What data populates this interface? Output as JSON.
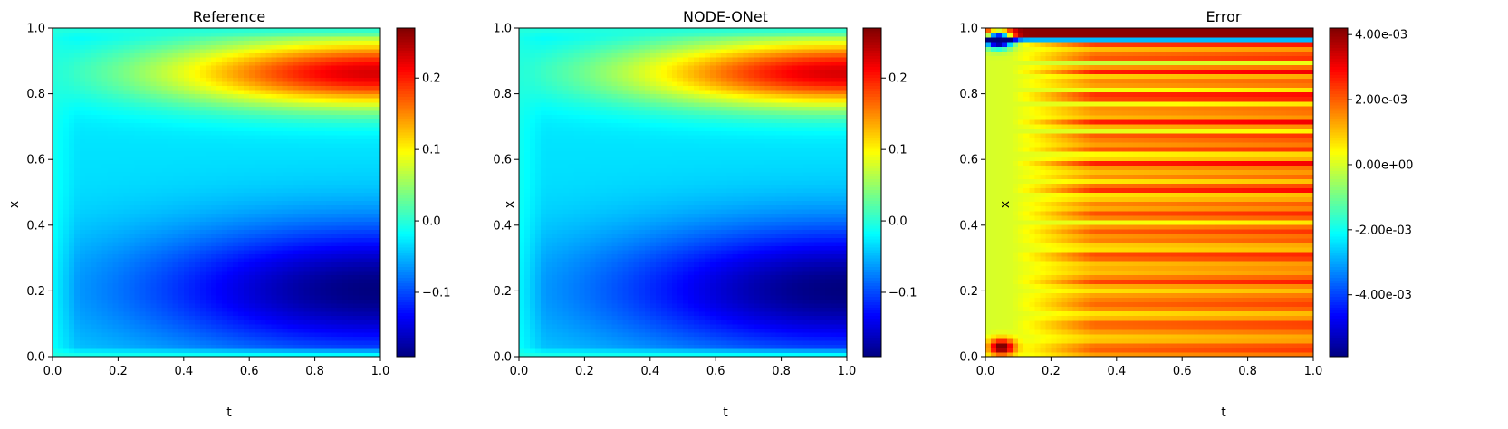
{
  "colormap": [
    "#00007f",
    "#0000ff",
    "#007fff",
    "#00ffff",
    "#7fff7f",
    "#ffff00",
    "#ff7f00",
    "#ff0000",
    "#7f0000"
  ],
  "chart_data": [
    {
      "type": "heatmap",
      "title": "Reference",
      "xlabel": "t",
      "ylabel": "x",
      "xlim": [
        0,
        1
      ],
      "ylim": [
        0,
        1
      ],
      "xticks": [
        0.0,
        0.2,
        0.4,
        0.6,
        0.8,
        1.0
      ],
      "xtick_labels": [
        "0.0",
        "0.2",
        "0.4",
        "0.6",
        "0.8",
        "1.0"
      ],
      "yticks": [
        0.0,
        0.2,
        0.4,
        0.6,
        0.8,
        1.0
      ],
      "ytick_labels": [
        "0.0",
        "0.2",
        "0.4",
        "0.6",
        "0.8",
        "1.0"
      ],
      "field": "solution",
      "colorbar": {
        "vmin": -0.19,
        "vmax": 0.27,
        "ticks": [
          -0.1,
          0.0,
          0.1,
          0.2
        ],
        "tick_labels": [
          "−0.1",
          "0.0",
          "0.1",
          "0.2"
        ]
      }
    },
    {
      "type": "heatmap",
      "title": "NODE-ONet",
      "xlabel": "t",
      "ylabel": "x",
      "xlim": [
        0,
        1
      ],
      "ylim": [
        0,
        1
      ],
      "xticks": [
        0.0,
        0.2,
        0.4,
        0.6,
        0.8,
        1.0
      ],
      "xtick_labels": [
        "0.0",
        "0.2",
        "0.4",
        "0.6",
        "0.8",
        "1.0"
      ],
      "yticks": [
        0.0,
        0.2,
        0.4,
        0.6,
        0.8,
        1.0
      ],
      "ytick_labels": [
        "0.0",
        "0.2",
        "0.4",
        "0.6",
        "0.8",
        "1.0"
      ],
      "field": "solution",
      "colorbar": {
        "vmin": -0.19,
        "vmax": 0.27,
        "ticks": [
          -0.1,
          0.0,
          0.1,
          0.2
        ],
        "tick_labels": [
          "−0.1",
          "0.0",
          "0.1",
          "0.2"
        ]
      }
    },
    {
      "type": "heatmap",
      "title": "Error",
      "xlabel": "t",
      "ylabel": "x",
      "xlim": [
        0,
        1
      ],
      "ylim": [
        0,
        1
      ],
      "xticks": [
        0.0,
        0.2,
        0.4,
        0.6,
        0.8,
        1.0
      ],
      "xtick_labels": [
        "0.0",
        "0.2",
        "0.4",
        "0.6",
        "0.8",
        "1.0"
      ],
      "yticks": [
        0.0,
        0.2,
        0.4,
        0.6,
        0.8,
        1.0
      ],
      "ytick_labels": [
        "0.0",
        "0.2",
        "0.4",
        "0.6",
        "0.8",
        "1.0"
      ],
      "field": "error",
      "colorbar": {
        "vmin": -0.0059,
        "vmax": 0.0042,
        "ticks": [
          -0.004,
          -0.002,
          0.0,
          0.002,
          0.004
        ],
        "tick_labels": [
          "-4.00e-03",
          "-2.00e-03",
          "0.00e+00",
          "2.00e-03",
          "4.00e-03"
        ]
      }
    }
  ]
}
